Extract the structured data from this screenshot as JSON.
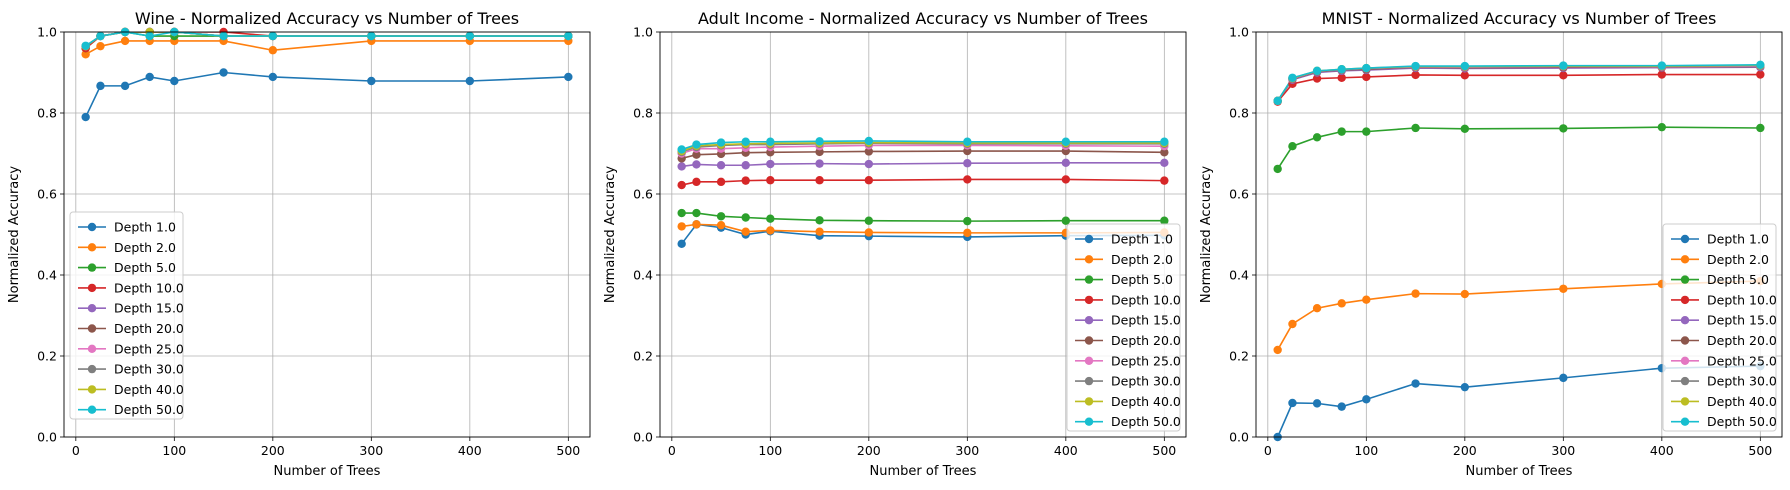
{
  "chart_data": [
    {
      "type": "line",
      "title": "Wine - Normalized Accuracy vs Number of Trees",
      "xlabel": "Number of Trees",
      "ylabel": "Normalized Accuracy",
      "xlim": [
        -12,
        522
      ],
      "ylim": [
        0,
        1.0
      ],
      "x_ticks": [
        "0",
        "100",
        "200",
        "300",
        "400",
        "500"
      ],
      "y_ticks": [
        "0.0",
        "0.2",
        "0.4",
        "0.6",
        "0.8",
        "1.0"
      ],
      "grid": true,
      "legend_position": "center-left",
      "x": [
        10,
        25,
        50,
        75,
        100,
        150,
        200,
        300,
        400,
        500
      ],
      "series": [
        {
          "name": "Depth 1.0",
          "color": "#1f77b4",
          "values": [
            0.79,
            0.867,
            0.867,
            0.889,
            0.879,
            0.9,
            0.889,
            0.879,
            0.879,
            0.889
          ]
        },
        {
          "name": "Depth 2.0",
          "color": "#ff7f0e",
          "values": [
            0.945,
            0.965,
            0.978,
            0.978,
            0.978,
            0.978,
            0.955,
            0.978,
            0.978,
            0.978
          ]
        },
        {
          "name": "Depth 5.0",
          "color": "#2ca02c",
          "values": [
            0.96,
            0.99,
            1.0,
            0.99,
            0.99,
            0.99,
            0.99,
            0.99,
            0.99,
            0.99
          ]
        },
        {
          "name": "Depth 10.0",
          "color": "#d62728",
          "values": [
            0.96,
            0.99,
            1.0,
            1.0,
            1.0,
            1.0,
            0.99,
            0.99,
            0.99,
            0.99
          ]
        },
        {
          "name": "Depth 15.0",
          "color": "#9467bd",
          "values": [
            0.965,
            0.99,
            1.0,
            1.0,
            1.0,
            0.99,
            0.99,
            0.99,
            0.99,
            0.99
          ]
        },
        {
          "name": "Depth 20.0",
          "color": "#8c564b",
          "values": [
            0.965,
            0.99,
            1.0,
            1.0,
            1.0,
            0.99,
            0.99,
            0.99,
            0.99,
            0.99
          ]
        },
        {
          "name": "Depth 25.0",
          "color": "#e377c2",
          "values": [
            0.965,
            0.99,
            1.0,
            1.0,
            1.0,
            0.99,
            0.99,
            0.99,
            0.99,
            0.99
          ]
        },
        {
          "name": "Depth 30.0",
          "color": "#7f7f7f",
          "values": [
            0.965,
            0.99,
            1.0,
            1.0,
            1.0,
            0.99,
            0.99,
            0.99,
            0.99,
            0.99
          ]
        },
        {
          "name": "Depth 40.0",
          "color": "#bcbd22",
          "values": [
            0.965,
            0.99,
            1.0,
            1.0,
            1.0,
            0.99,
            0.99,
            0.99,
            0.99,
            0.99
          ]
        },
        {
          "name": "Depth 50.0",
          "color": "#17becf",
          "values": [
            0.966,
            0.99,
            1.0,
            0.99,
            1.0,
            0.99,
            0.99,
            0.99,
            0.99,
            0.99
          ]
        }
      ]
    },
    {
      "type": "line",
      "title": "Adult Income - Normalized Accuracy vs Number of Trees",
      "xlabel": "Number of Trees",
      "ylabel": "Normalized Accuracy",
      "xlim": [
        -12,
        522
      ],
      "ylim": [
        0,
        1.0
      ],
      "x_ticks": [
        "0",
        "100",
        "200",
        "300",
        "400",
        "500"
      ],
      "y_ticks": [
        "0.0",
        "0.2",
        "0.4",
        "0.6",
        "0.8",
        "1.0"
      ],
      "grid": true,
      "legend_position": "lower-right",
      "x": [
        10,
        25,
        50,
        75,
        100,
        150,
        200,
        300,
        400,
        500
      ],
      "series": [
        {
          "name": "Depth 1.0",
          "color": "#1f77b4",
          "values": [
            0.477,
            0.525,
            0.517,
            0.5,
            0.508,
            0.497,
            0.496,
            0.494,
            0.497,
            0.498
          ]
        },
        {
          "name": "Depth 2.0",
          "color": "#ff7f0e",
          "values": [
            0.52,
            0.525,
            0.523,
            0.507,
            0.51,
            0.507,
            0.505,
            0.504,
            0.504,
            0.505
          ]
        },
        {
          "name": "Depth 5.0",
          "color": "#2ca02c",
          "values": [
            0.553,
            0.553,
            0.545,
            0.542,
            0.539,
            0.535,
            0.534,
            0.533,
            0.534,
            0.534
          ]
        },
        {
          "name": "Depth 10.0",
          "color": "#d62728",
          "values": [
            0.622,
            0.63,
            0.63,
            0.633,
            0.634,
            0.634,
            0.634,
            0.636,
            0.636,
            0.633
          ]
        },
        {
          "name": "Depth 15.0",
          "color": "#9467bd",
          "values": [
            0.668,
            0.673,
            0.671,
            0.671,
            0.674,
            0.675,
            0.674,
            0.676,
            0.677,
            0.677
          ]
        },
        {
          "name": "Depth 20.0",
          "color": "#8c564b",
          "values": [
            0.688,
            0.697,
            0.699,
            0.702,
            0.703,
            0.704,
            0.705,
            0.706,
            0.706,
            0.703
          ]
        },
        {
          "name": "Depth 25.0",
          "color": "#e377c2",
          "values": [
            0.7,
            0.712,
            0.712,
            0.714,
            0.716,
            0.718,
            0.72,
            0.72,
            0.719,
            0.718
          ]
        },
        {
          "name": "Depth 30.0",
          "color": "#7f7f7f",
          "values": [
            0.704,
            0.716,
            0.72,
            0.722,
            0.722,
            0.724,
            0.725,
            0.724,
            0.724,
            0.724
          ]
        },
        {
          "name": "Depth 40.0",
          "color": "#bcbd22",
          "values": [
            0.706,
            0.719,
            0.722,
            0.724,
            0.725,
            0.726,
            0.727,
            0.726,
            0.726,
            0.726
          ]
        },
        {
          "name": "Depth 50.0",
          "color": "#17becf",
          "values": [
            0.71,
            0.722,
            0.727,
            0.729,
            0.729,
            0.73,
            0.731,
            0.729,
            0.729,
            0.729
          ]
        }
      ]
    },
    {
      "type": "line",
      "title": "MNIST - Normalized Accuracy vs Number of Trees",
      "xlabel": "Number of Trees",
      "ylabel": "Normalized Accuracy",
      "xlim": [
        -12,
        522
      ],
      "ylim": [
        0,
        1.0
      ],
      "x_ticks": [
        "0",
        "100",
        "200",
        "300",
        "400",
        "500"
      ],
      "y_ticks": [
        "0.0",
        "0.2",
        "0.4",
        "0.6",
        "0.8",
        "1.0"
      ],
      "grid": true,
      "legend_position": "lower-right",
      "x": [
        10,
        25,
        50,
        75,
        100,
        150,
        200,
        300,
        400,
        500
      ],
      "series": [
        {
          "name": "Depth 1.0",
          "color": "#1f77b4",
          "values": [
            0.0,
            0.084,
            0.083,
            0.075,
            0.093,
            0.132,
            0.123,
            0.146,
            0.17,
            0.175
          ]
        },
        {
          "name": "Depth 2.0",
          "color": "#ff7f0e",
          "values": [
            0.215,
            0.279,
            0.318,
            0.33,
            0.339,
            0.354,
            0.353,
            0.366,
            0.378,
            0.385
          ]
        },
        {
          "name": "Depth 5.0",
          "color": "#2ca02c",
          "values": [
            0.662,
            0.718,
            0.74,
            0.754,
            0.754,
            0.763,
            0.761,
            0.762,
            0.765,
            0.763
          ]
        },
        {
          "name": "Depth 10.0",
          "color": "#d62728",
          "values": [
            0.828,
            0.872,
            0.885,
            0.887,
            0.889,
            0.894,
            0.893,
            0.893,
            0.895,
            0.895
          ]
        },
        {
          "name": "Depth 15.0",
          "color": "#9467bd",
          "values": [
            0.83,
            0.882,
            0.9,
            0.904,
            0.906,
            0.911,
            0.91,
            0.911,
            0.912,
            0.913
          ]
        },
        {
          "name": "Depth 20.0",
          "color": "#8c564b",
          "values": [
            0.83,
            0.884,
            0.902,
            0.906,
            0.908,
            0.913,
            0.912,
            0.913,
            0.913,
            0.915
          ]
        },
        {
          "name": "Depth 25.0",
          "color": "#e377c2",
          "values": [
            0.83,
            0.885,
            0.903,
            0.907,
            0.91,
            0.914,
            0.913,
            0.915,
            0.914,
            0.916
          ]
        },
        {
          "name": "Depth 30.0",
          "color": "#7f7f7f",
          "values": [
            0.83,
            0.886,
            0.903,
            0.907,
            0.91,
            0.915,
            0.914,
            0.916,
            0.915,
            0.917
          ]
        },
        {
          "name": "Depth 40.0",
          "color": "#bcbd22",
          "values": [
            0.83,
            0.886,
            0.904,
            0.908,
            0.911,
            0.915,
            0.915,
            0.916,
            0.916,
            0.918
          ]
        },
        {
          "name": "Depth 50.0",
          "color": "#17becf",
          "values": [
            0.83,
            0.887,
            0.904,
            0.908,
            0.911,
            0.916,
            0.916,
            0.917,
            0.917,
            0.919
          ]
        }
      ]
    }
  ]
}
